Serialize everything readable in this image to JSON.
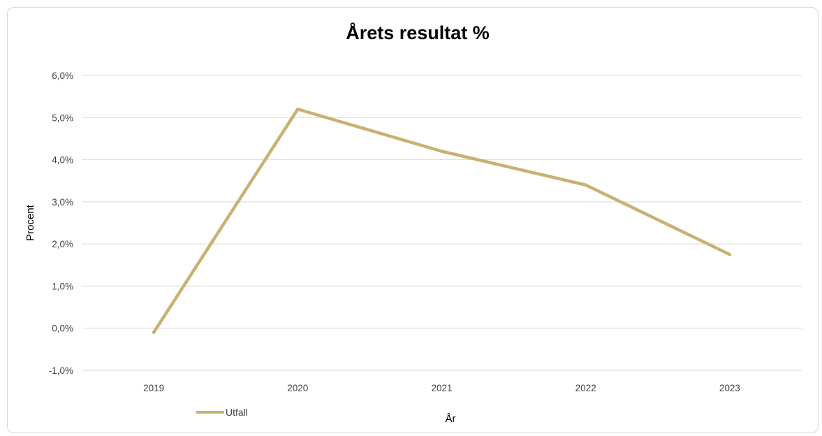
{
  "chart_data": {
    "type": "line",
    "title": "Årets resultat %",
    "xlabel": "År",
    "ylabel": "Procent",
    "categories": [
      "2019",
      "2020",
      "2021",
      "2022",
      "2023"
    ],
    "series": [
      {
        "name": "Utfall",
        "values": [
          -0.1,
          5.2,
          4.2,
          3.4,
          1.75
        ],
        "color": "#c9b073"
      }
    ],
    "ylim": [
      -1.0,
      6.0
    ],
    "yticks": [
      "-1,0%",
      "0,0%",
      "1,0%",
      "2,0%",
      "3,0%",
      "4,0%",
      "5,0%",
      "6,0%"
    ],
    "grid": true,
    "legend_position": "bottom-left"
  }
}
